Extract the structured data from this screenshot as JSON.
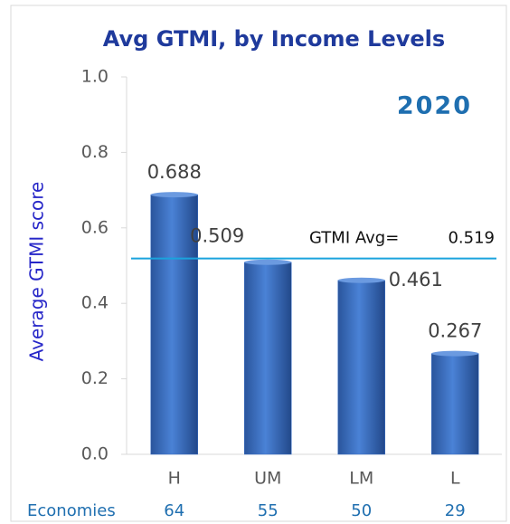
{
  "chart_data": {
    "type": "bar",
    "title": "Avg GTMI, by Income Levels",
    "ylabel": "Average GTMI score",
    "annotation": "2020",
    "categories": [
      "H",
      "UM",
      "LM",
      "L"
    ],
    "values": [
      0.688,
      0.509,
      0.461,
      0.267
    ],
    "color": "#3a6fc4",
    "ylim": [
      0,
      1.0
    ],
    "yticks": [
      {
        "value": 0,
        "label": "0.0"
      },
      0.2,
      0.4,
      0.6,
      0.8,
      {
        "value": 1.0,
        "label": "1.0"
      }
    ],
    "reference_line": {
      "label": "GTMI Avg=",
      "value": 0.519,
      "color": "#1aa3dd"
    },
    "economies": {
      "label": "Economies",
      "values": [
        64,
        55,
        50,
        29
      ]
    }
  }
}
